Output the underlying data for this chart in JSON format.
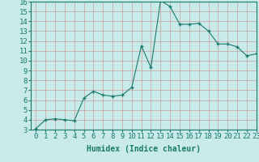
{
  "x": [
    0,
    1,
    2,
    3,
    4,
    5,
    6,
    7,
    8,
    9,
    10,
    11,
    12,
    13,
    14,
    15,
    16,
    17,
    18,
    19,
    20,
    21,
    22,
    23
  ],
  "y": [
    3.1,
    4.0,
    4.1,
    4.0,
    3.9,
    6.2,
    6.9,
    6.5,
    6.4,
    6.5,
    7.3,
    11.5,
    9.3,
    16.1,
    15.5,
    13.7,
    13.7,
    13.8,
    13.0,
    11.7,
    11.7,
    11.4,
    10.5,
    10.7
  ],
  "line_color": "#1a7a6e",
  "marker_color": "#1a7a6e",
  "bg_color": "#c8eae8",
  "grid_color": "#c8a0a0",
  "title": "",
  "xlabel": "Humidex (Indice chaleur)",
  "ylabel": "",
  "ylim": [
    3,
    16
  ],
  "xlim": [
    -0.5,
    23
  ],
  "yticks": [
    3,
    4,
    5,
    6,
    7,
    8,
    9,
    10,
    11,
    12,
    13,
    14,
    15,
    16
  ],
  "xticks": [
    0,
    1,
    2,
    3,
    4,
    5,
    6,
    7,
    8,
    9,
    10,
    11,
    12,
    13,
    14,
    15,
    16,
    17,
    18,
    19,
    20,
    21,
    22,
    23
  ],
  "xlabel_fontsize": 7,
  "tick_fontsize": 6.5
}
